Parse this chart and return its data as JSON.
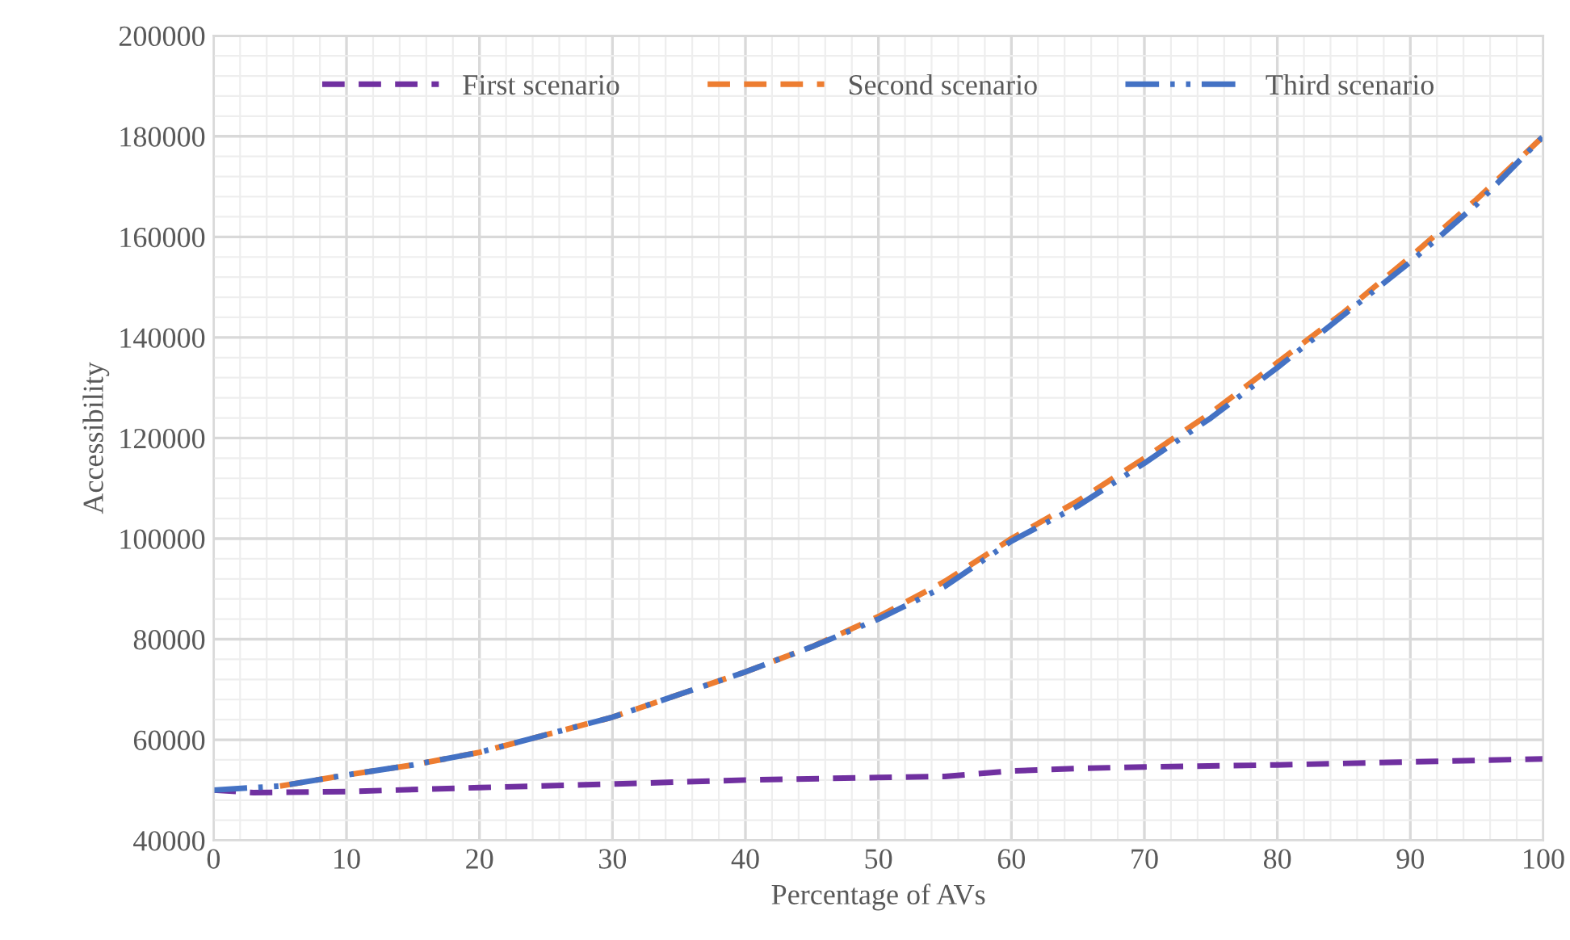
{
  "chart_data": {
    "type": "line",
    "xlabel": "Percentage of AVs",
    "ylabel": "Accessibility",
    "xlim": [
      0,
      100
    ],
    "xticks": [
      0,
      10,
      20,
      30,
      40,
      50,
      60,
      70,
      80,
      90,
      100
    ],
    "ylim": [
      40000,
      200000
    ],
    "yticks": [
      40000,
      60000,
      80000,
      100000,
      120000,
      140000,
      160000,
      180000,
      200000
    ],
    "grid": true,
    "legend": "top",
    "marker": "none",
    "series": [
      {
        "name": "First scenario",
        "color": "#7030a0",
        "line_style": "dashed",
        "x": [
          0,
          3,
          10,
          20,
          30,
          40,
          50,
          55,
          60,
          65,
          70,
          80,
          90,
          100
        ],
        "values": [
          50000,
          49500,
          49700,
          50500,
          51200,
          52000,
          52500,
          52700,
          53800,
          54300,
          54600,
          55000,
          55600,
          56200
        ]
      },
      {
        "name": "Second scenario",
        "color": "#ed7d31",
        "line_style": "dashed",
        "x": [
          5,
          10,
          15,
          20,
          25,
          30,
          35,
          40,
          45,
          50,
          55,
          60,
          65,
          70,
          75,
          80,
          85,
          90,
          95,
          100
        ],
        "values": [
          50800,
          53000,
          55000,
          57500,
          61000,
          64500,
          69000,
          73500,
          78500,
          84500,
          91500,
          100000,
          107500,
          116000,
          125000,
          135000,
          145000,
          156000,
          167500,
          180000
        ]
      },
      {
        "name": "Third scenario",
        "color": "#4472c4",
        "line_style": "dashdot",
        "x": [
          0,
          5,
          10,
          15,
          20,
          25,
          30,
          35,
          40,
          45,
          50,
          55,
          60,
          65,
          70,
          75,
          80,
          85,
          90,
          95,
          100
        ],
        "values": [
          50000,
          50800,
          53000,
          55000,
          57500,
          61000,
          64500,
          69000,
          73500,
          78500,
          84000,
          90500,
          99500,
          106500,
          115000,
          124000,
          134000,
          144500,
          155000,
          166500,
          180000
        ]
      }
    ]
  }
}
